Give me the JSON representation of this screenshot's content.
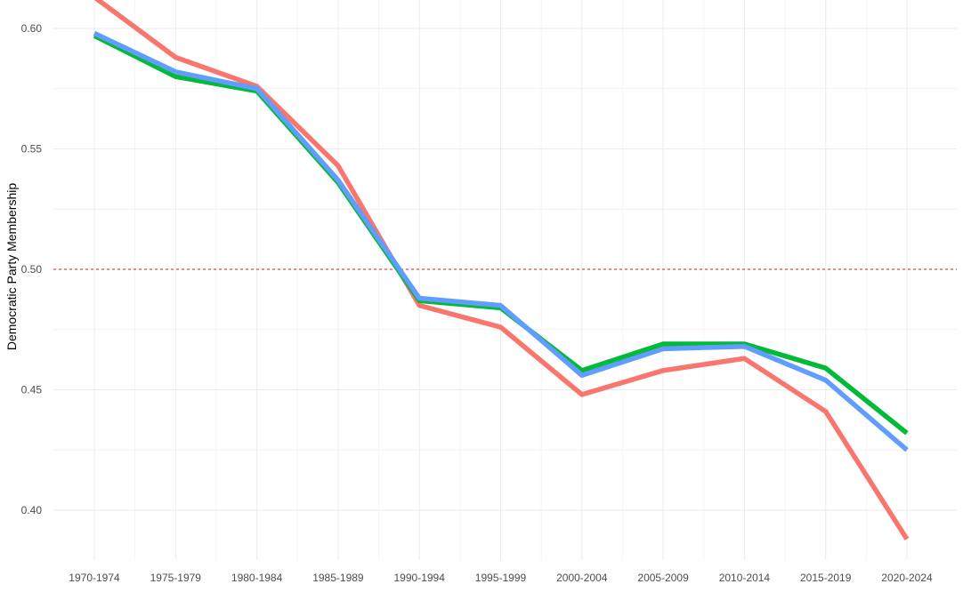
{
  "chart_data": {
    "type": "line",
    "title": "",
    "xlabel": "",
    "ylabel": "Democratic Party Membership",
    "categories": [
      "1970-1974",
      "1975-1979",
      "1980-1984",
      "1985-1989",
      "1990-1994",
      "1995-1999",
      "2000-2004",
      "2005-2009",
      "2010-2014",
      "2015-2019",
      "2020-2024"
    ],
    "ylim": [
      0.38,
      0.612
    ],
    "yticks": [
      0.4,
      0.45,
      0.5,
      0.55,
      0.6
    ],
    "ytick_labels": [
      "0.40",
      "0.45",
      "0.50",
      "0.55",
      "0.60"
    ],
    "grid": true,
    "legend": "none",
    "reference_line": {
      "y": 0.5,
      "style": "dashed",
      "color": "#cc2222"
    },
    "series": [
      {
        "color": "#f8766d",
        "values": [
          0.613,
          0.588,
          0.576,
          0.543,
          0.485,
          0.476,
          0.448,
          0.458,
          0.463,
          0.441,
          0.388
        ]
      },
      {
        "color": "#00ba38",
        "values": [
          0.597,
          0.58,
          0.574,
          0.536,
          0.487,
          0.484,
          0.458,
          0.469,
          0.469,
          0.459,
          0.432
        ]
      },
      {
        "color": "#619cff",
        "values": [
          0.598,
          0.582,
          0.575,
          0.537,
          0.488,
          0.485,
          0.456,
          0.467,
          0.468,
          0.454,
          0.425
        ]
      }
    ]
  }
}
